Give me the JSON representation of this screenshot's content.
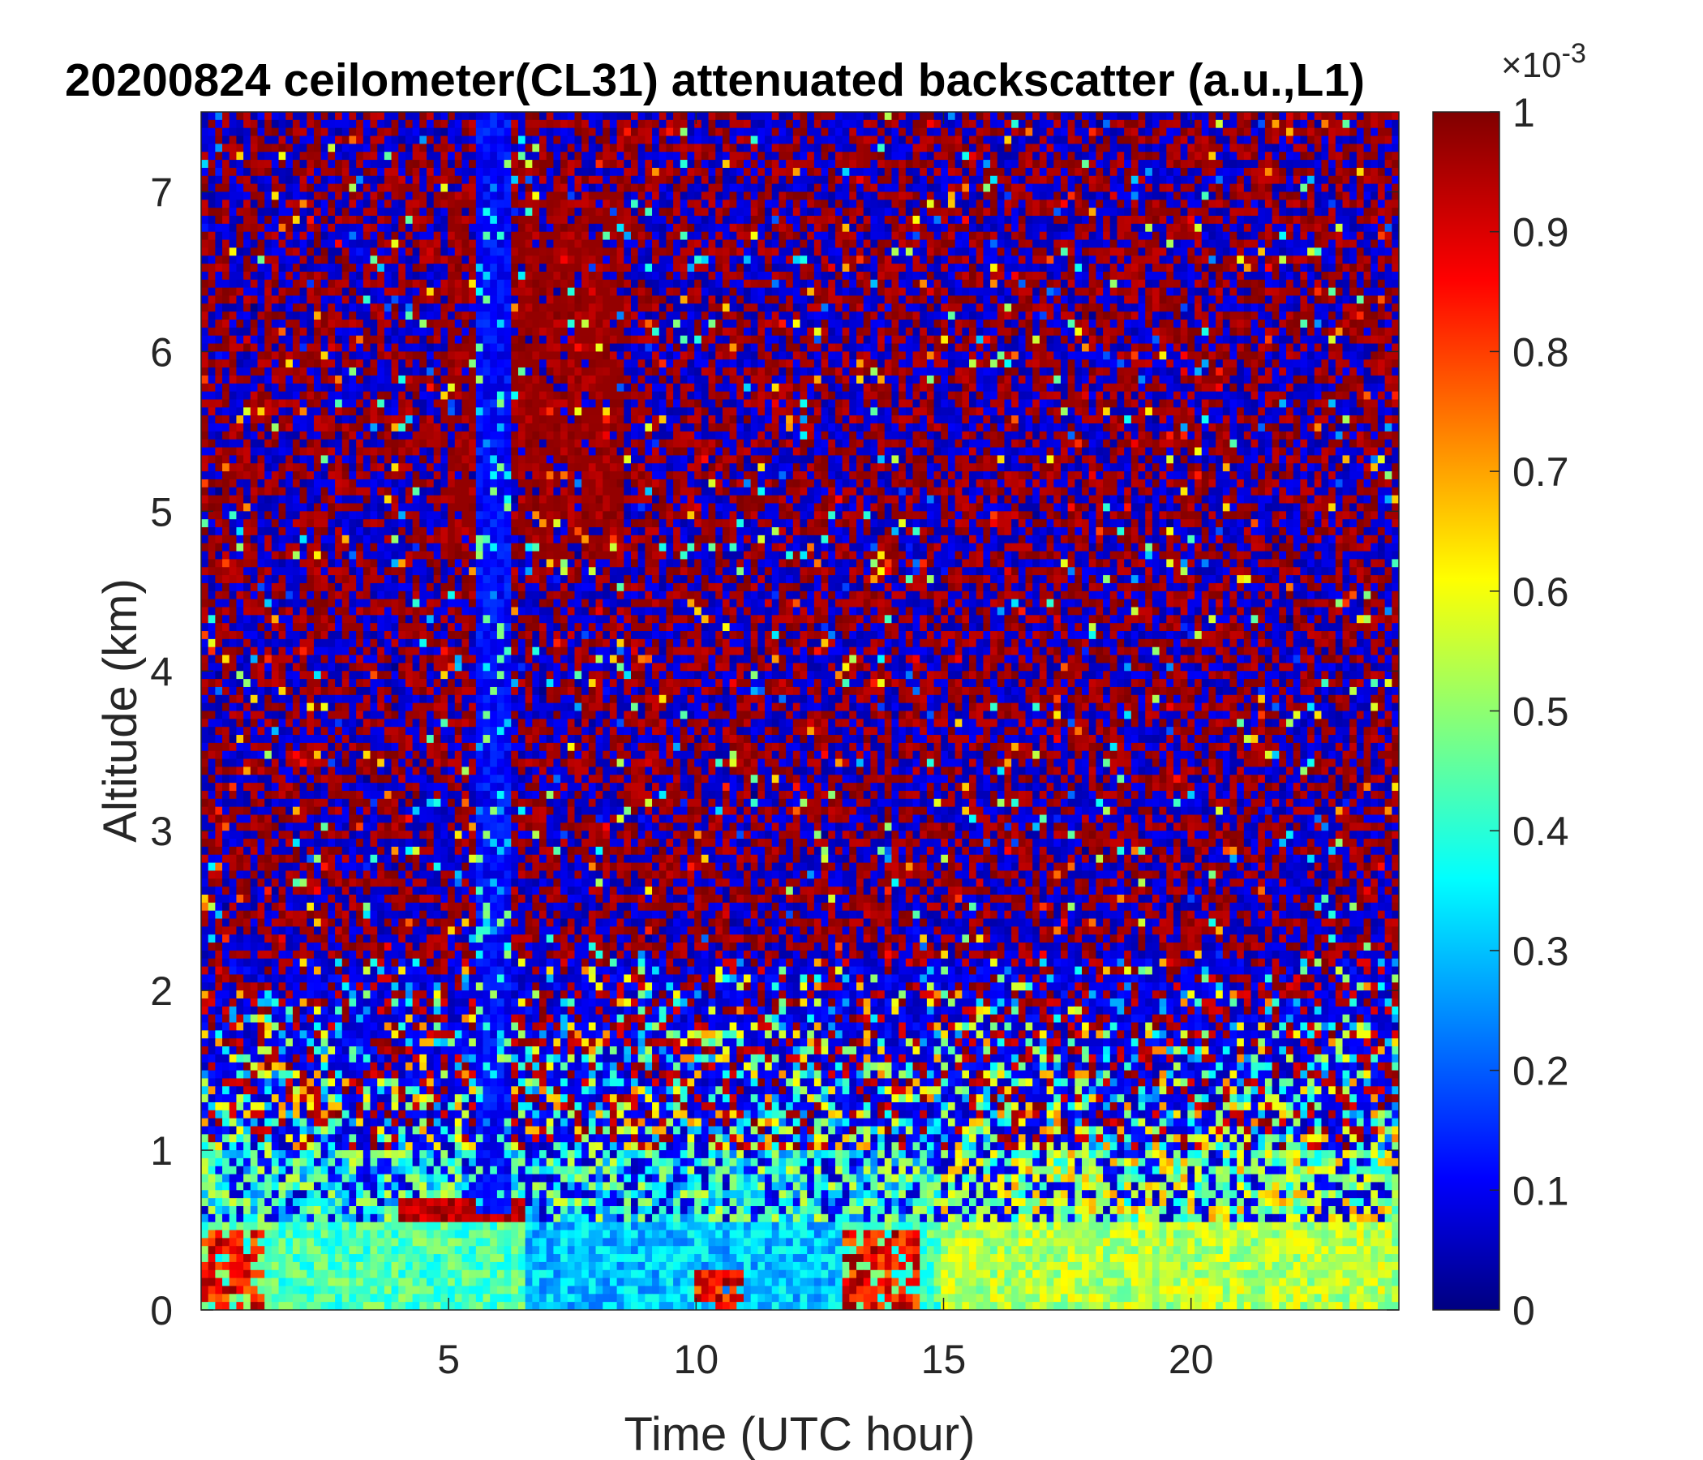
{
  "chart_data": {
    "type": "heatmap",
    "title": "20200824 ceilometer(CL31) attenuated backscatter (a.u.,L1)",
    "xlabel": "Time (UTC hour)",
    "ylabel": "Altitude (km)",
    "xlim": [
      0,
      24.2
    ],
    "ylim": [
      0,
      7.5
    ],
    "xticks": [
      5,
      10,
      15,
      20
    ],
    "xtick_labels": [
      "5",
      "10",
      "15",
      "20"
    ],
    "yticks": [
      0,
      1,
      2,
      3,
      4,
      5,
      6,
      7
    ],
    "ytick_labels": [
      "0",
      "1",
      "2",
      "3",
      "4",
      "5",
      "6",
      "7"
    ],
    "colorbar": {
      "colormap": "jet",
      "range": [
        0,
        0.001
      ],
      "ticks": [
        0,
        0.1,
        0.2,
        0.3,
        0.4,
        0.5,
        0.6,
        0.7,
        0.8,
        0.9,
        1
      ],
      "tick_labels": [
        "0",
        "0.1",
        "0.2",
        "0.3",
        "0.4",
        "0.5",
        "0.6",
        "0.7",
        "0.8",
        "0.9",
        "1"
      ],
      "exponent_base": "×10",
      "exponent_power": "-3"
    },
    "features": [
      {
        "name": "boundary layer aerosol",
        "x_range": [
          0,
          24.2
        ],
        "y_range": [
          0,
          0.9
        ],
        "level": 0.5
      },
      {
        "name": "low clouds",
        "x_range": [
          0,
          1.3
        ],
        "y_range": [
          0,
          0.5
        ],
        "level": 0.9
      },
      {
        "name": "low clouds",
        "x_range": [
          13,
          14.5
        ],
        "y_range": [
          0,
          0.5
        ],
        "level": 0.85
      },
      {
        "name": "low clouds",
        "x_range": [
          10,
          11
        ],
        "y_range": [
          0,
          0.25
        ],
        "level": 0.95
      },
      {
        "name": "cloud layer",
        "x_range": [
          4,
          6.5
        ],
        "y_range": [
          0.55,
          0.7
        ],
        "level": 1.0
      },
      {
        "name": "precipitation column",
        "x_range": [
          5.6,
          6.2
        ],
        "y_range": [
          0.6,
          7.5
        ],
        "level": 0.05
      },
      {
        "name": "upper cloud streaks",
        "x_range": [
          5,
          8.5
        ],
        "y_range": [
          4.7,
          7
        ],
        "level": 1.0
      },
      {
        "name": "evening plumes",
        "x_range": [
          15,
          24.2
        ],
        "y_range": [
          0,
          1.8
        ],
        "level": 0.65
      }
    ]
  }
}
